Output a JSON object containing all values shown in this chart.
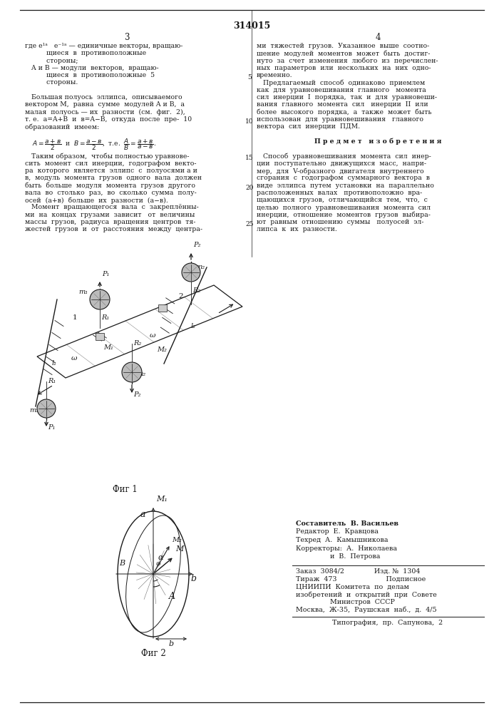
{
  "page_bg": "#ffffff",
  "title_number": "314015",
  "col3_header": "3",
  "col4_header": "4",
  "text_color": "#1a1a1a",
  "fig1_caption": "Фиг 1",
  "fig2_caption": "Фиг 2",
  "publisher_lines": [
    "Составитель  В. Васильев",
    "Редактор  Е.  Кравцова",
    "Техред  А.  Камышникова",
    "Корректоры:  А.  Николаева",
    "                и  В.  Петрова"
  ],
  "publisher_info": [
    "Заказ  3084/2              Изд. №  1304",
    "Тираж  473                       Подписное",
    "ЦНИИПИ  Комитета  по  делам",
    "изобретений  и  открытий  при  Совете",
    "                Министров  СССР",
    "Москва,  Ж-35,  Раушская  наб.,  д.  4/5"
  ],
  "typography_line": "Типография,  пр.  Сапунова,  2",
  "left_col_lines": [
    [
      "normal",
      "где e¹ᵃ   e⁻¹ᵃ — единичные векторы, вращаю-"
    ],
    [
      "normal",
      "          щиеся  в  противоположные"
    ],
    [
      "normal",
      "          стороны;"
    ],
    [
      "normal",
      "   A и B — модули  векторов,  вращаю-"
    ],
    [
      "normal",
      "          щиеся  в  противоположные  5"
    ],
    [
      "normal",
      "          стороны."
    ],
    [
      "normal",
      ""
    ],
    [
      "normal",
      "   Большая полуось  эллипса,  описываемого"
    ],
    [
      "normal",
      "вектором M,  равна  сумме  модулей A и B,  а"
    ],
    [
      "normal",
      "малая  полуось — их  разности  (см.  фиг.  2),"
    ],
    [
      "normal",
      "т. е.  a=A+B  и  в=A−B,  откуда  после  пре-  10"
    ],
    [
      "normal",
      "образований  имеем:"
    ],
    [
      "normal",
      ""
    ]
  ],
  "right_col_lines": [
    [
      "normal",
      "ми  тяжестей  грузов.  Указанное  выше  соотно-"
    ],
    [
      "normal",
      "шение  модулей  моментов  может  быть  достиг-"
    ],
    [
      "normal",
      "нуто  за  счет  изменения  любого  из  перечислен-"
    ],
    [
      "normal",
      "ных  параметров  или  нескольких  на  них  одно-"
    ],
    [
      "normal",
      "временно."
    ],
    [
      "normal",
      "   Предлагаемый  способ  одинаково  приемлем"
    ],
    [
      "normal",
      "как  для  уравновешивания  главного   момента"
    ],
    [
      "normal",
      "сил  инерции  I  порядка,  так  и  для  уравновеши-"
    ],
    [
      "normal",
      "вания  главного  момента  сил   инерции  II  или"
    ],
    [
      "normal",
      "более  высокого  порядка,  а  также  может  быть"
    ],
    [
      "normal",
      "использован  для  уравновешивания   главного"
    ],
    [
      "normal",
      "вектора  сил  инерции  ПДМ."
    ],
    [
      "normal",
      ""
    ],
    [
      "center",
      "П р е д м е т   и з о б р е т е н и я"
    ],
    [
      "normal",
      ""
    ],
    [
      "normal",
      "   Способ  уравновешивания  момента  сил  инер-"
    ],
    [
      "normal",
      "ции  поступательно  движущихся  масс,  напри-"
    ],
    [
      "normal",
      "мер,  для  V-образного  двигателя  внутреннего"
    ],
    [
      "normal",
      "сгорания  с  годографом  суммарного  вектора  в"
    ],
    [
      "normal",
      "виде  эллипса  путем  установки  на  параллельно"
    ],
    [
      "normal",
      "расположенных  валах   противоположно  вра-"
    ],
    [
      "italic",
      "щающихся  грузов,  отличающийся  тем,  что,  с"
    ],
    [
      "normal",
      "целью  полного  уравновешивания  момента  сил"
    ],
    [
      "normal",
      "инерции,  отношение  моментов  грузов  выбира-"
    ],
    [
      "normal",
      "ют  равным  отношению  суммы   полуосей  эл-"
    ],
    [
      "normal",
      "липса  к  их  разности."
    ]
  ]
}
